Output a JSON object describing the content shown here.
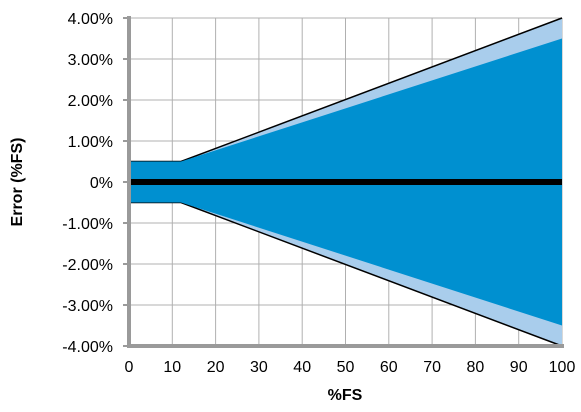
{
  "chart_data": {
    "type": "area",
    "title": "",
    "xlabel": "%FS",
    "ylabel": "Error (%FS)",
    "xlim": [
      0,
      100
    ],
    "ylim": [
      -4,
      4
    ],
    "x_ticks": [
      "0",
      "10",
      "20",
      "30",
      "40",
      "50",
      "60",
      "70",
      "80",
      "90",
      "100"
    ],
    "y_ticks": [
      "4.00%",
      "3.00%",
      "2.00%",
      "1.00%",
      "0%",
      "-1.00%",
      "-2.00%",
      "-3.00%",
      "-4.00%"
    ],
    "grid": true,
    "bands": [
      {
        "color": "#a9cdec",
        "upper": [
          [
            0,
            0.5
          ],
          [
            12,
            0.5
          ],
          [
            100,
            4.0
          ]
        ],
        "lower": [
          [
            0,
            -0.5
          ],
          [
            12,
            -0.5
          ],
          [
            100,
            -4.0
          ]
        ]
      },
      {
        "color": "#0090d0",
        "upper": [
          [
            0,
            0.5
          ],
          [
            12,
            0.5
          ],
          [
            100,
            3.5
          ]
        ],
        "lower": [
          [
            0,
            -0.5
          ],
          [
            12,
            -0.5
          ],
          [
            100,
            -3.5
          ]
        ]
      }
    ],
    "center_line": {
      "y": 0,
      "color": "#000000"
    }
  }
}
